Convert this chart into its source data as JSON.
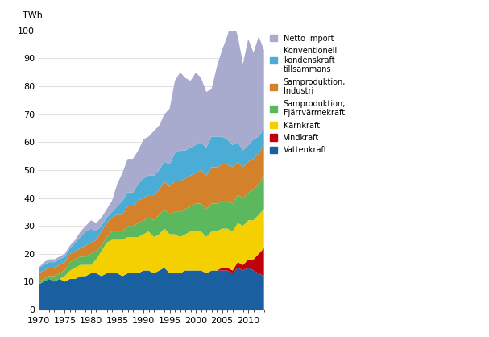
{
  "years": [
    1970,
    1971,
    1972,
    1973,
    1974,
    1975,
    1976,
    1977,
    1978,
    1979,
    1980,
    1981,
    1982,
    1983,
    1984,
    1985,
    1986,
    1987,
    1988,
    1989,
    1990,
    1991,
    1992,
    1993,
    1994,
    1995,
    1996,
    1997,
    1998,
    1999,
    2000,
    2001,
    2002,
    2003,
    2004,
    2005,
    2006,
    2007,
    2008,
    2009,
    2010,
    2011,
    2012,
    2013
  ],
  "Vattenkraft": [
    9,
    10,
    11,
    10,
    11,
    10,
    11,
    11,
    12,
    12,
    13,
    13,
    12,
    13,
    13,
    13,
    12,
    13,
    13,
    13,
    14,
    14,
    13,
    14,
    15,
    13,
    13,
    13,
    14,
    14,
    14,
    14,
    13,
    14,
    14,
    14,
    14,
    13,
    15,
    14,
    15,
    14,
    13,
    12
  ],
  "Vindkraft": [
    0,
    0,
    0,
    0,
    0,
    0,
    0,
    0,
    0,
    0,
    0,
    0,
    0,
    0,
    0,
    0,
    0,
    0,
    0,
    0,
    0,
    0,
    0,
    0,
    0,
    0,
    0,
    0,
    0,
    0,
    0,
    0,
    0,
    0,
    0,
    1,
    1,
    1,
    2,
    2,
    3,
    4,
    7,
    10
  ],
  "Kärnkraft": [
    0,
    0,
    0,
    0,
    0,
    2,
    3,
    4,
    4,
    4,
    3,
    5,
    9,
    11,
    12,
    12,
    13,
    13,
    13,
    13,
    13,
    14,
    13,
    13,
    14,
    14,
    14,
    13,
    13,
    14,
    14,
    14,
    13,
    14,
    14,
    14,
    14,
    14,
    14,
    14,
    14,
    14,
    14,
    14
  ],
  "Samproduktion_Fjarrvärmekraft": [
    1,
    1,
    1,
    2,
    2,
    2,
    3,
    3,
    3,
    3,
    4,
    3,
    2,
    2,
    3,
    3,
    3,
    4,
    4,
    5,
    5,
    5,
    6,
    7,
    7,
    7,
    8,
    9,
    9,
    9,
    10,
    10,
    10,
    10,
    10,
    10,
    10,
    10,
    10,
    10,
    10,
    11,
    11,
    12
  ],
  "Samproduktion_Industri": [
    3,
    3,
    3,
    3,
    3,
    3,
    3,
    3,
    3,
    4,
    4,
    4,
    5,
    5,
    5,
    6,
    6,
    7,
    7,
    8,
    8,
    8,
    9,
    9,
    10,
    10,
    11,
    11,
    11,
    11,
    11,
    12,
    12,
    13,
    13,
    13,
    13,
    13,
    12,
    11,
    11,
    11,
    11,
    11
  ],
  "Konventionell_kondenskraft": [
    2,
    2,
    2,
    2,
    2,
    2,
    2,
    3,
    4,
    5,
    5,
    3,
    2,
    2,
    2,
    3,
    5,
    5,
    5,
    6,
    7,
    7,
    7,
    7,
    7,
    8,
    10,
    11,
    10,
    10,
    10,
    10,
    10,
    11,
    11,
    10,
    9,
    8,
    7,
    6,
    6,
    7,
    6,
    6
  ],
  "Netto_Import": [
    0,
    1,
    1,
    1,
    1,
    1,
    1,
    1,
    2,
    2,
    3,
    3,
    3,
    3,
    4,
    8,
    10,
    12,
    12,
    12,
    14,
    14,
    16,
    16,
    17,
    20,
    26,
    28,
    26,
    24,
    26,
    23,
    20,
    17,
    25,
    31,
    37,
    45,
    38,
    31,
    38,
    31,
    36,
    28
  ],
  "colors": {
    "Vattenkraft": "#1a5fa0",
    "Vindkraft": "#c0000b",
    "Kärnkraft": "#f5d000",
    "Samproduktion_Fjarrvärmekraft": "#5cb85c",
    "Samproduktion_Industri": "#d4812b",
    "Konventionell_kondenskraft": "#4badd6",
    "Netto_Import": "#a8aace"
  },
  "ylabel": "TWh",
  "ylim": [
    0,
    100
  ],
  "yticks": [
    0,
    10,
    20,
    30,
    40,
    50,
    60,
    70,
    80,
    90,
    100
  ],
  "xticks": [
    1970,
    1975,
    1980,
    1985,
    1990,
    1995,
    2000,
    2005,
    2010
  ],
  "legend_labels": [
    "Netto Import",
    "Konventionell\nkondenskraft\ntillsammans",
    "Samproduktion,\nIndustri",
    "Samproduktion,\nFjärrvärmekraft",
    "Kärnkraft",
    "Vindkraft",
    "Vattenkraft"
  ],
  "legend_colors": [
    "#a8aace",
    "#4badd6",
    "#d4812b",
    "#5cb85c",
    "#f5d000",
    "#c0000b",
    "#1a5fa0"
  ]
}
